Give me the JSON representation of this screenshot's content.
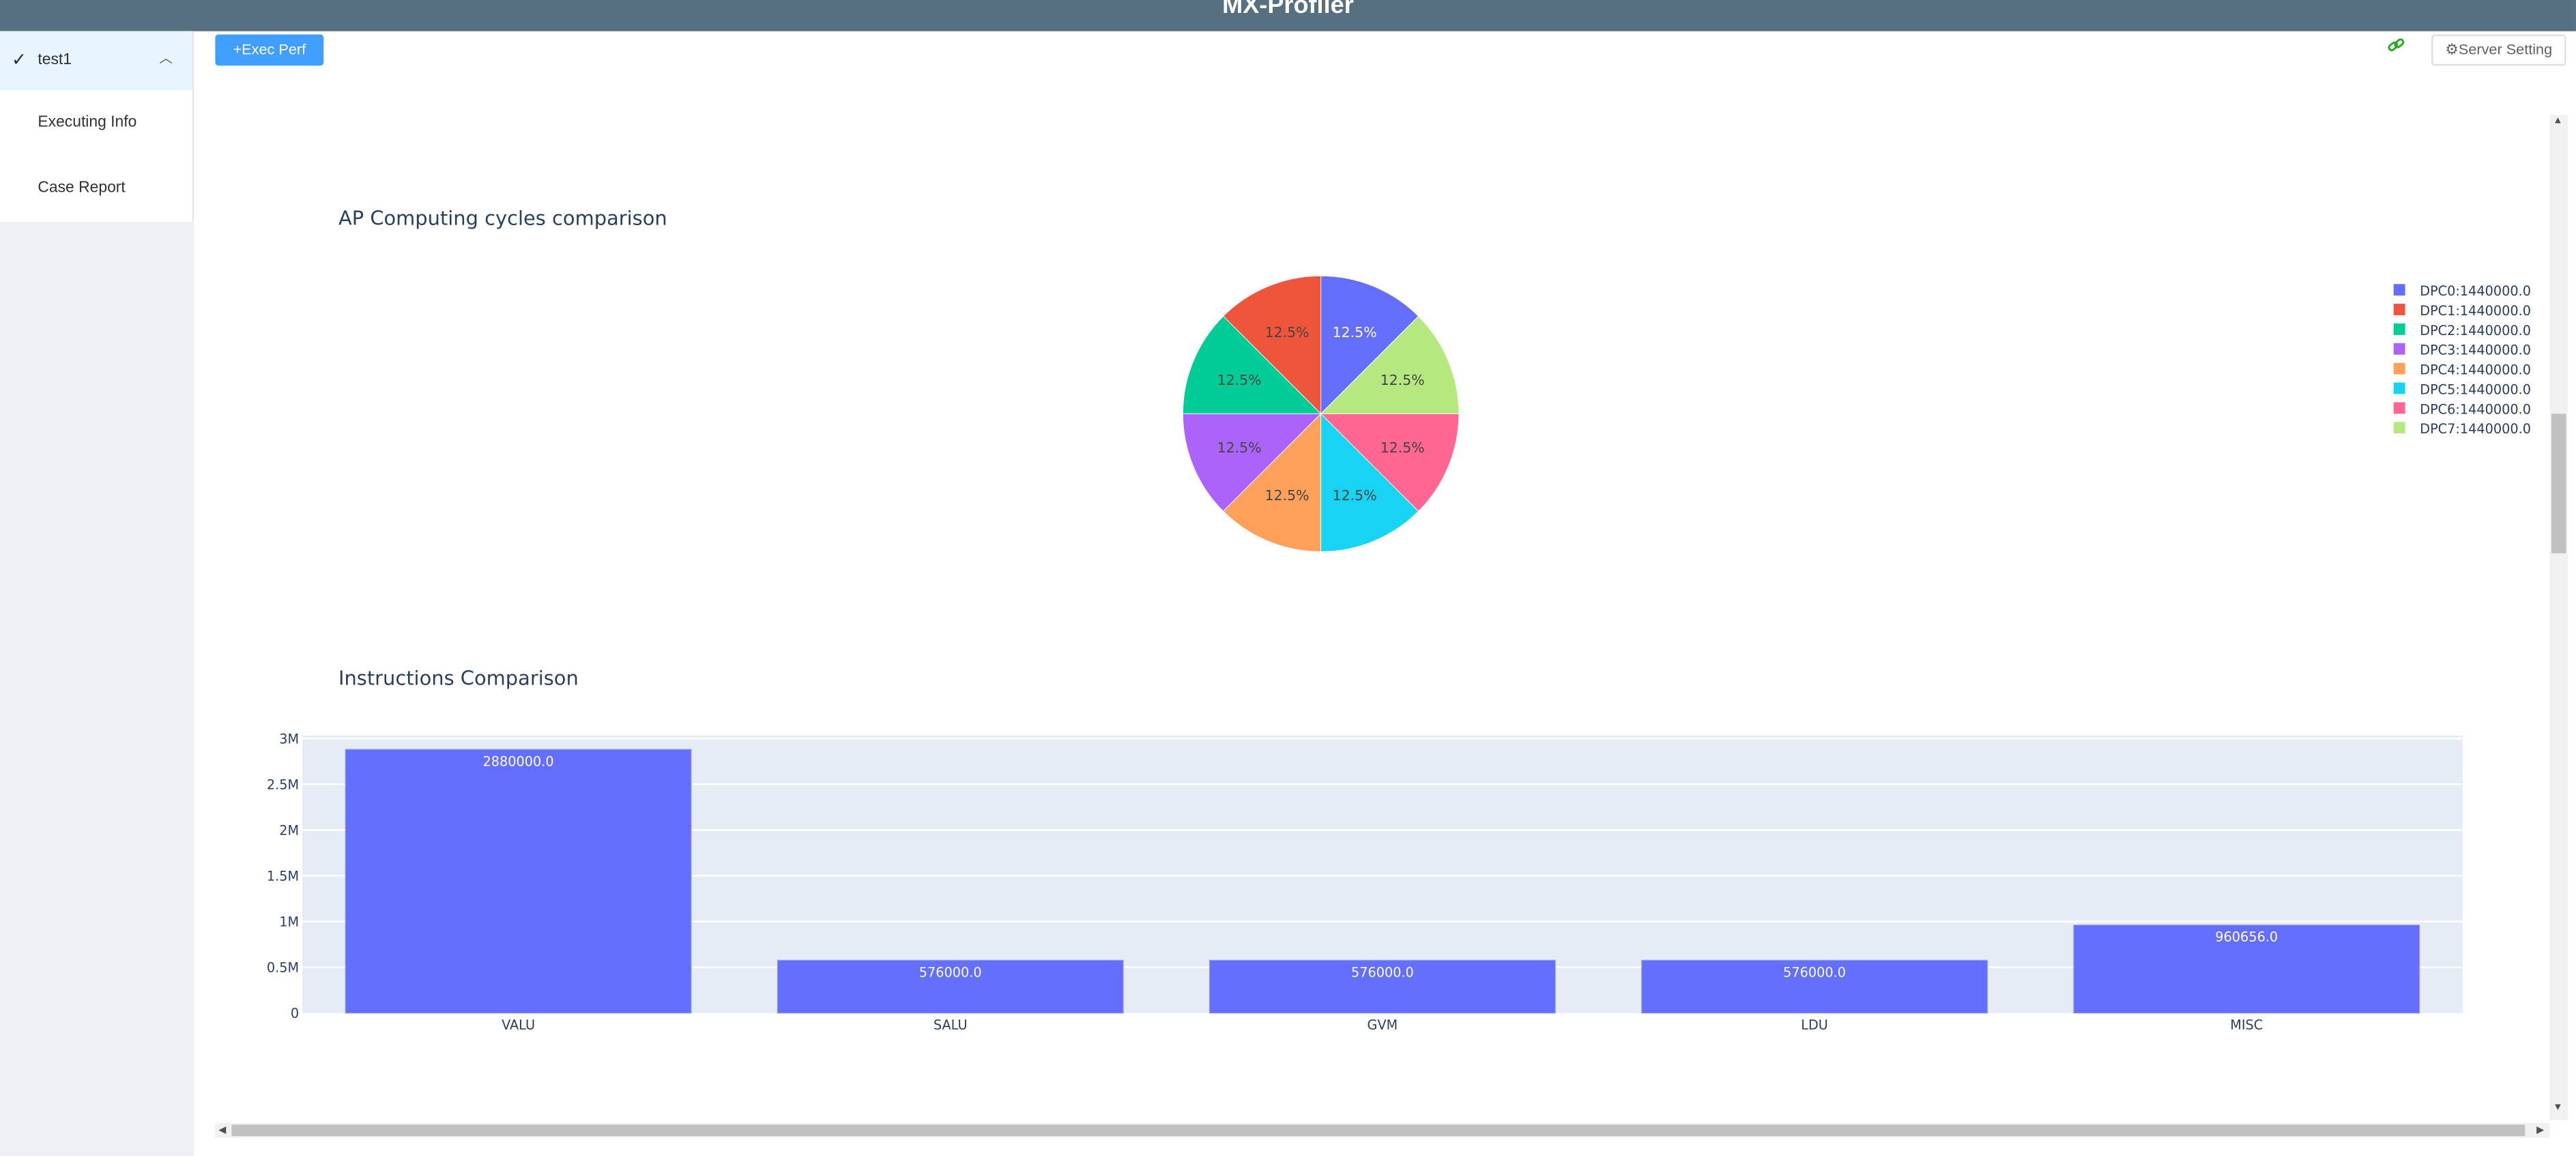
{
  "header": {
    "title": "MX-Profiler"
  },
  "sidebar": {
    "group": {
      "label": "test1",
      "expanded": true
    },
    "items": [
      {
        "label": "Executing Info"
      },
      {
        "label": "Case Report"
      }
    ]
  },
  "toolbar": {
    "exec_label": "+Exec Perf",
    "server_setting_label": "Server Setting",
    "link_icon": "link-icon",
    "gear_icon": "gear-icon"
  },
  "colors": {
    "accent": "#409eff",
    "header": "#56707f",
    "bar": "#636efa",
    "plot_bg": "#e5ecf6"
  },
  "chart_data": [
    {
      "type": "pie",
      "title": "AP Computing cycles comparison",
      "labels": [
        "DPC0",
        "DPC1",
        "DPC2",
        "DPC3",
        "DPC4",
        "DPC5",
        "DPC6",
        "DPC7"
      ],
      "values": [
        1440000.0,
        1440000.0,
        1440000.0,
        1440000.0,
        1440000.0,
        1440000.0,
        1440000.0,
        1440000.0
      ],
      "legend": [
        "DPC0:1440000.0",
        "DPC1:1440000.0",
        "DPC2:1440000.0",
        "DPC3:1440000.0",
        "DPC4:1440000.0",
        "DPC5:1440000.0",
        "DPC6:1440000.0",
        "DPC7:1440000.0"
      ],
      "slice_text": [
        "12.5%",
        "12.5%",
        "12.5%",
        "12.5%",
        "12.5%",
        "12.5%",
        "12.5%",
        "12.5%"
      ],
      "colors": [
        "#636efa",
        "#ef553b",
        "#00cc96",
        "#ab63fa",
        "#ffa15a",
        "#19d3f3",
        "#ff6692",
        "#b6e880"
      ],
      "legend_placement": "right"
    },
    {
      "type": "bar",
      "title": "Instructions Comparison",
      "categories": [
        "VALU",
        "SALU",
        "GVM",
        "LDU",
        "MISC"
      ],
      "values": [
        2880000.0,
        576000.0,
        576000.0,
        576000.0,
        960656.0
      ],
      "data_labels": [
        "2880000.0",
        "576000.0",
        "576000.0",
        "576000.0",
        "960656.0"
      ],
      "yticks": [
        0,
        500000,
        1000000,
        1500000,
        2000000,
        2500000,
        3000000
      ],
      "ytick_labels": [
        "0",
        "0.5M",
        "1M",
        "1.5M",
        "2M",
        "2.5M",
        "3M"
      ],
      "ylim": [
        0,
        3031579
      ],
      "grid": true
    }
  ]
}
